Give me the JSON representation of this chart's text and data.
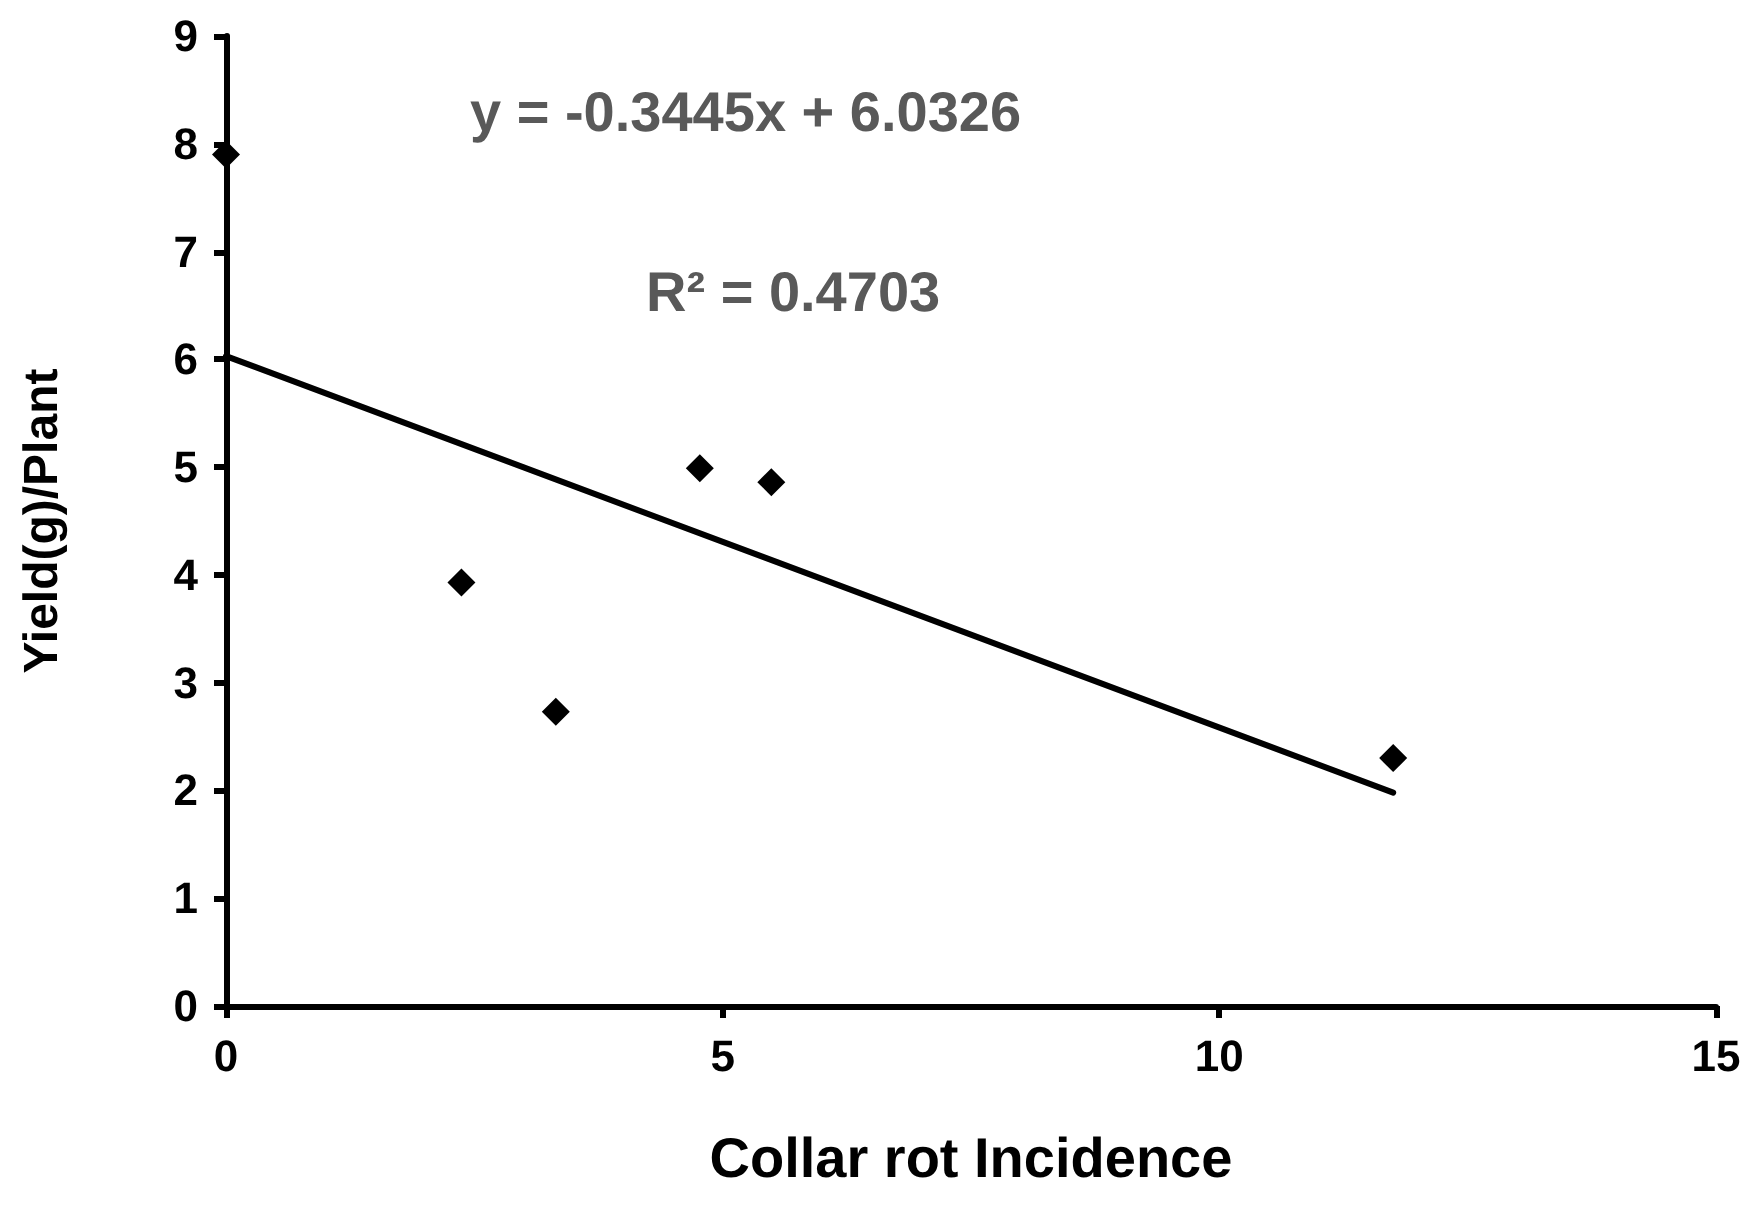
{
  "chart_data": {
    "type": "scatter",
    "xlabel": "Collar rot Incidence",
    "ylabel": "Yield(g)/Plant",
    "annotations": [
      "y = -0.3445x + 6.0326",
      "R² = 0.4703"
    ],
    "series": [
      {
        "color": "#000000",
        "marker": "diamond",
        "x": [
          0,
          2.37,
          3.32,
          4.77,
          5.49,
          11.75
        ],
        "values": [
          7.9,
          3.93,
          2.73,
          4.99,
          4.86,
          2.3
        ]
      },
      {
        "type": "line",
        "color": "#000000",
        "marker": "none",
        "x": [
          0,
          11.75
        ],
        "values": [
          6.03,
          1.98
        ]
      }
    ],
    "xlim": [
      0,
      15
    ],
    "xticks": [
      0,
      5,
      10,
      15
    ],
    "ylim": [
      0,
      9
    ],
    "yticks": [
      0,
      1,
      2,
      3,
      4,
      5,
      6,
      7,
      8,
      9
    ],
    "grid": false
  }
}
